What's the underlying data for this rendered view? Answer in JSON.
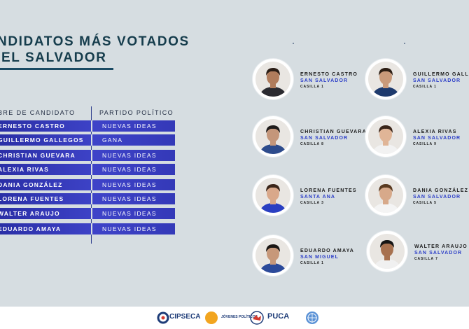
{
  "title": {
    "line1": "NDIDATOS MÁS VOTADOS",
    "line2": "EL SALVADOR"
  },
  "table": {
    "header_name": "BRE DE CANDIDATO",
    "header_party": "PARTIDO POLÍTICO",
    "rows": [
      {
        "name": "ERNESTO CASTRO",
        "party": "NUEVAS IDEAS"
      },
      {
        "name": "GUILLERMO GALLEGOS",
        "party": "GANA"
      },
      {
        "name": "CHRISTIAN GUEVARA",
        "party": "NUEVAS IDEAS"
      },
      {
        "name": "ALEXIA RIVAS",
        "party": "NUEVAS IDEAS"
      },
      {
        "name": "DANIA GONZÁLEZ",
        "party": "NUEVAS IDEAS"
      },
      {
        "name": "LORENA FUENTES",
        "party": "NUEVAS IDEAS"
      },
      {
        "name": "WALTER ARAUJO",
        "party": "NUEVAS IDEAS"
      },
      {
        "name": "EDUARDO AMAYA",
        "party": "NUEVAS IDEAS"
      }
    ]
  },
  "candidates": [
    {
      "name": "ERNESTO CASTRO",
      "city": "SAN SALVADOR",
      "casilla": "CASILLA 1",
      "skin": "#b07c5c",
      "hair": "#2a1d16",
      "shirt": "#2a2a30"
    },
    {
      "name": "GUILLERMO GALLE",
      "city": "SAN SALVADOR",
      "casilla": "CASILLA 1",
      "skin": "#c99a7a",
      "hair": "#2c1e14",
      "shirt": "#1e3a6d"
    },
    {
      "name": "CHRISTIAN GUEVARA",
      "city": "SAN SALVADOR",
      "casilla": "CASILLA 8",
      "skin": "#c4967a",
      "hair": "#1d1a19",
      "shirt": "#2d4b8c"
    },
    {
      "name": "ALEXIA RIVAS",
      "city": "SAN SALVADOR",
      "casilla": "CASILLA 9",
      "skin": "#e0b597",
      "hair": "#3a2418",
      "shirt": "#f2f2f2"
    },
    {
      "name": "LORENA FUENTES",
      "city": "SANTA ANA",
      "casilla": "CASILLA 3",
      "skin": "#d9a88a",
      "hair": "#3a2519",
      "shirt": "#2a3fc2"
    },
    {
      "name": "DANIA GONZÁLEZ",
      "city": "SAN SALVADOR",
      "casilla": "CASILLA 5",
      "skin": "#d7a98a",
      "hair": "#5a3a20",
      "shirt": "#f4f4f4"
    },
    {
      "name": "EDUARDO AMAYA",
      "city": "SAN MIGUEL",
      "casilla": "CASILLA 1",
      "skin": "#c7987a",
      "hair": "#1a1614",
      "shirt": "#2c4a9a"
    },
    {
      "name": "WALTER ARAUJO",
      "city": "SAN SALVADOR",
      "casilla": "CASILLA 7",
      "skin": "#a7714f",
      "hair": "#141414",
      "shirt": "#f0f0f0"
    }
  ],
  "footer": {
    "logos": [
      {
        "text": "CIPSECA",
        "color": "#1e3c78"
      },
      {
        "text": "JÓVENES POLÍTICOS",
        "color": "#1e3c78"
      },
      {
        "text": "PUCA",
        "color": "#1e3c78"
      },
      {
        "text": "UN",
        "color": "#3b78b8"
      }
    ]
  }
}
